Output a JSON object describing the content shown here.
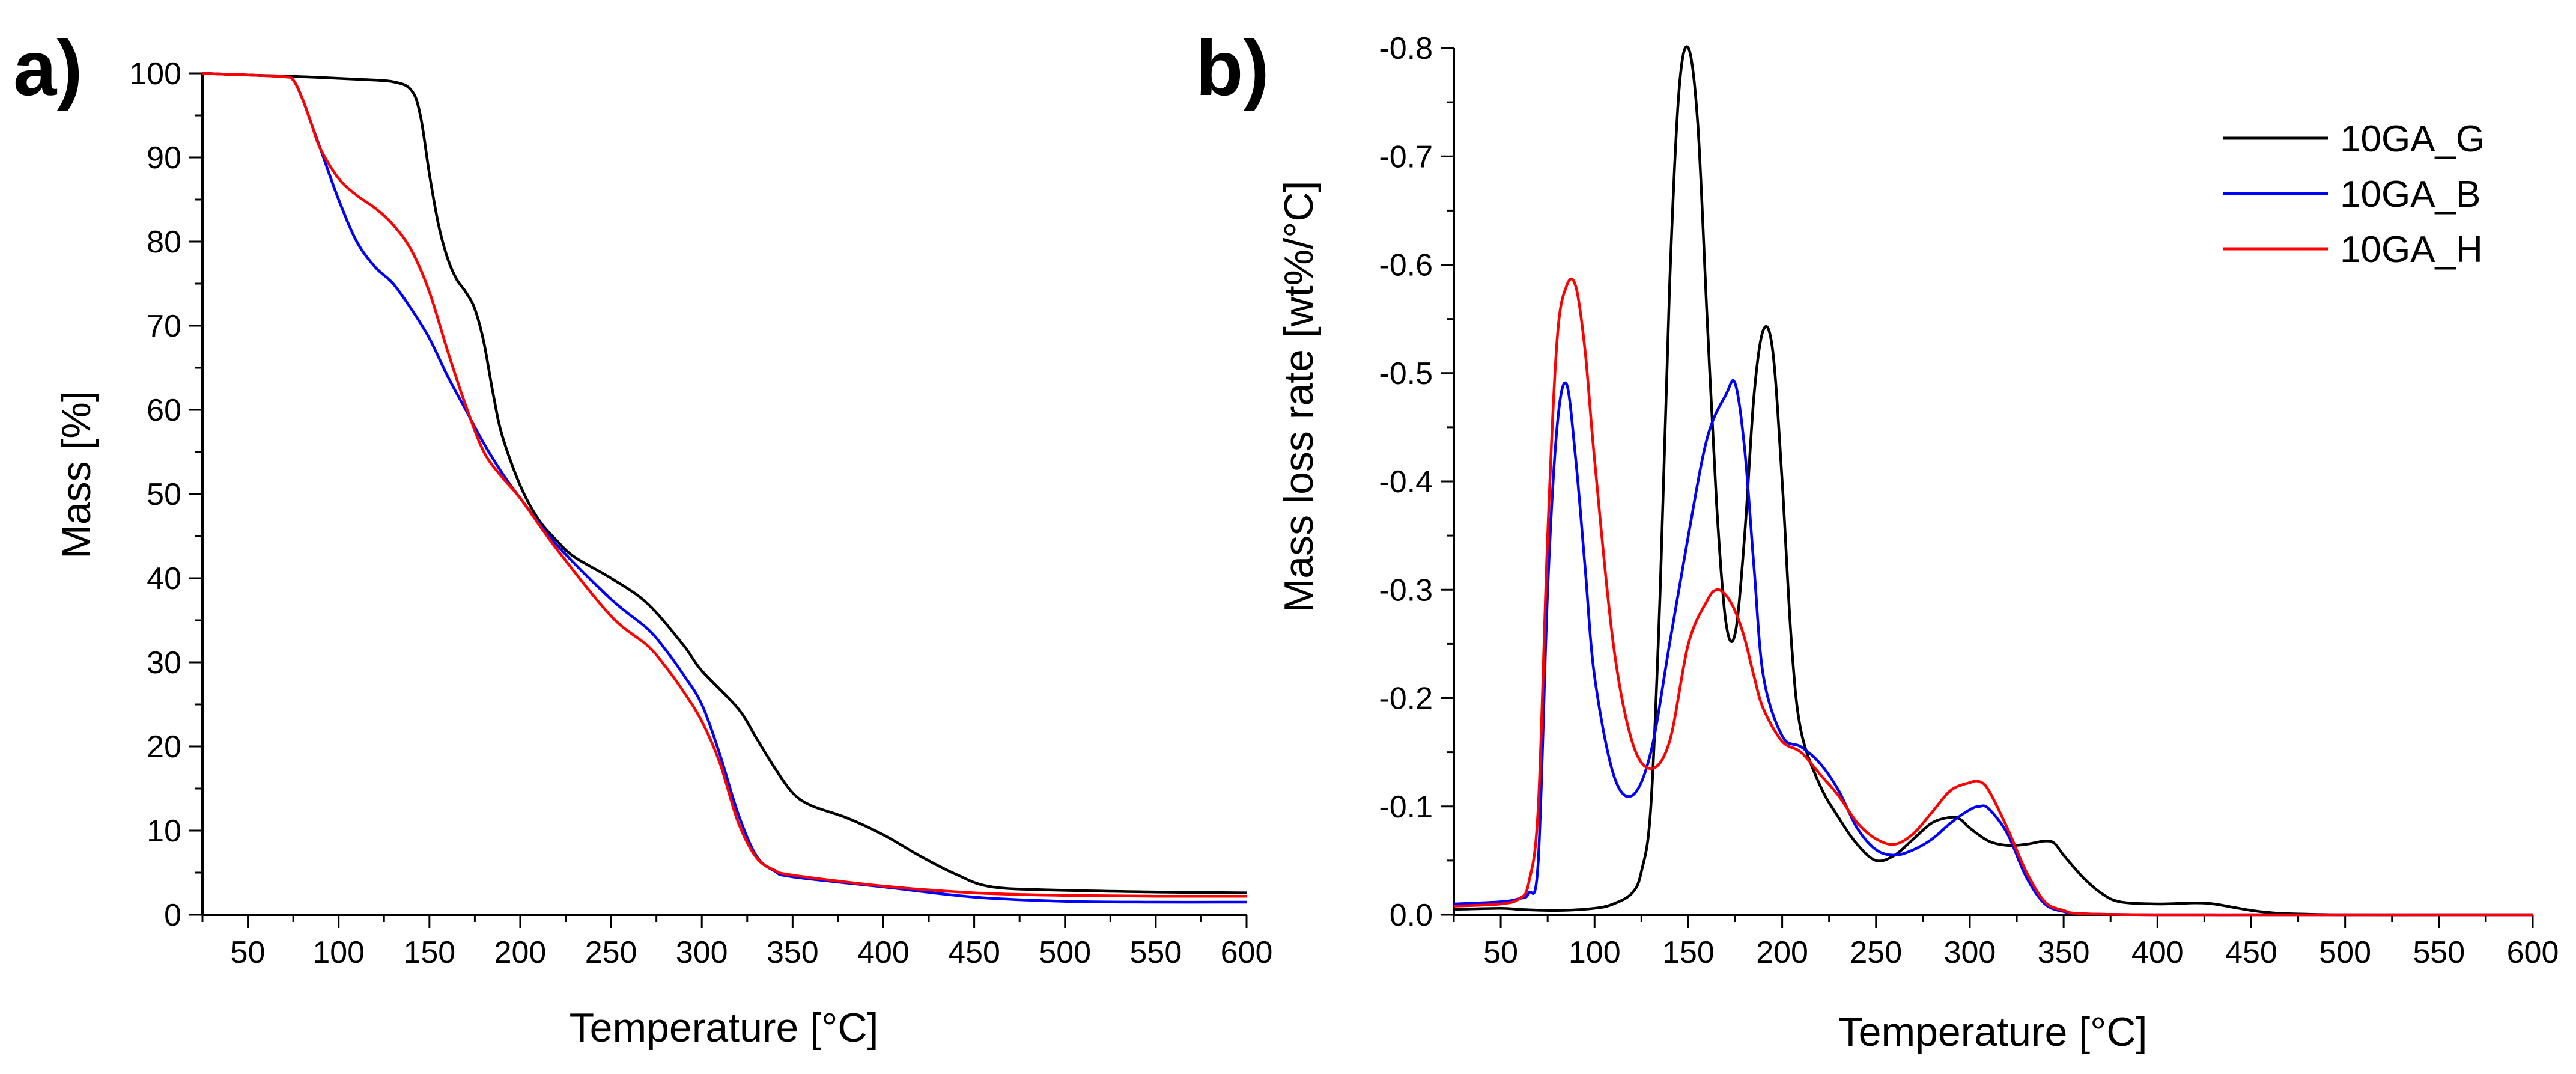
{
  "chart_data": [
    {
      "panel": "a)",
      "type": "line",
      "xlabel": "Temperature [°C]",
      "ylabel": "Mass [%]",
      "xlim": [
        25,
        600
      ],
      "ylim": [
        0,
        100
      ],
      "xticks": [
        50,
        100,
        150,
        200,
        250,
        300,
        350,
        400,
        450,
        500,
        550,
        600
      ],
      "yticks": [
        0,
        10,
        20,
        30,
        40,
        50,
        60,
        70,
        80,
        90,
        100
      ],
      "ytick_labels": [
        "0",
        "10",
        "20",
        "30",
        "40",
        "50",
        "60",
        "70",
        "80",
        "90",
        "100"
      ],
      "series": [
        {
          "name": "10GA_G",
          "color": "#000000",
          "x": [
            25,
            50,
            80,
            110,
            130,
            140,
            145,
            150,
            155,
            160,
            165,
            170,
            175,
            180,
            185,
            190,
            200,
            210,
            220,
            230,
            250,
            270,
            290,
            300,
            320,
            330,
            340,
            350,
            360,
            380,
            400,
            420,
            440,
            460,
            500,
            550,
            600
          ],
          "y": [
            100,
            99.8,
            99.6,
            99.3,
            99,
            98,
            95,
            88,
            82,
            78,
            75.5,
            74,
            72,
            68,
            62,
            57,
            51,
            47,
            44.5,
            42.5,
            40,
            37,
            32,
            29,
            24.5,
            21,
            17.5,
            14.5,
            13,
            11.5,
            9.5,
            7,
            4.8,
            3.3,
            2.9,
            2.7,
            2.6
          ]
        },
        {
          "name": "10GA_B",
          "color": "#0000ff",
          "x": [
            25,
            50,
            70,
            75,
            80,
            85,
            90,
            100,
            110,
            120,
            130,
            140,
            150,
            160,
            170,
            180,
            190,
            200,
            220,
            250,
            270,
            280,
            290,
            300,
            310,
            320,
            330,
            340,
            350,
            400,
            450,
            500,
            550,
            600
          ],
          "y": [
            100,
            99.8,
            99.6,
            99.2,
            97,
            94,
            91,
            85,
            80,
            77,
            75,
            72,
            68.5,
            64,
            60,
            56,
            52.5,
            49.5,
            44,
            37.5,
            34,
            31.5,
            28.5,
            25,
            19,
            12,
            7,
            5.2,
            4.5,
            3.3,
            2.1,
            1.6,
            1.5,
            1.5
          ]
        },
        {
          "name": "10GA_H",
          "color": "#ff0000",
          "x": [
            25,
            50,
            70,
            75,
            80,
            85,
            90,
            100,
            110,
            120,
            130,
            140,
            150,
            160,
            170,
            180,
            190,
            200,
            220,
            250,
            270,
            280,
            290,
            300,
            310,
            320,
            330,
            340,
            350,
            400,
            450,
            500,
            550,
            600
          ],
          "y": [
            100,
            99.8,
            99.6,
            99.2,
            97,
            94,
            91,
            87.5,
            85.5,
            84,
            82,
            79,
            74,
            67,
            60.5,
            55,
            52,
            49.5,
            43.5,
            35.5,
            32,
            29.5,
            26.5,
            23,
            18,
            11,
            6.8,
            5.3,
            4.7,
            3.4,
            2.6,
            2.3,
            2.2,
            2.2
          ]
        }
      ]
    },
    {
      "panel": "b)",
      "type": "line",
      "xlabel": "Temperature [°C]",
      "ylabel": "Mass loss rate [wt%/°C]",
      "xlim": [
        25,
        600
      ],
      "ylim": [
        0,
        0.8
      ],
      "y_inverted_sign": true,
      "xticks": [
        50,
        100,
        150,
        200,
        250,
        300,
        350,
        400,
        450,
        500,
        550,
        600
      ],
      "yticks": [
        0,
        0.1,
        0.2,
        0.3,
        0.4,
        0.5,
        0.6,
        0.7,
        0.8
      ],
      "ytick_labels": [
        "0.0",
        "-0.1",
        "-0.2",
        "-0.3",
        "-0.4",
        "-0.5",
        "-0.6",
        "-0.7",
        "-0.8"
      ],
      "legend": {
        "position": "top-right",
        "entries": [
          "10GA_G",
          "10GA_B",
          "10GA_H"
        ]
      },
      "series": [
        {
          "name": "10GA_G",
          "color": "#000000",
          "x": [
            25,
            50,
            60,
            80,
            100,
            110,
            120,
            125,
            130,
            135,
            140,
            145,
            150,
            155,
            160,
            165,
            170,
            175,
            180,
            185,
            190,
            195,
            200,
            205,
            210,
            220,
            230,
            240,
            250,
            260,
            270,
            280,
            290,
            295,
            300,
            310,
            320,
            330,
            340,
            345,
            350,
            360,
            370,
            380,
            400,
            420,
            430,
            440,
            450,
            460,
            470,
            500,
            550,
            600
          ],
          "y": [
            0.005,
            0.006,
            0.005,
            0.004,
            0.006,
            0.01,
            0.02,
            0.04,
            0.1,
            0.3,
            0.58,
            0.76,
            0.8,
            0.73,
            0.55,
            0.38,
            0.27,
            0.26,
            0.35,
            0.48,
            0.54,
            0.52,
            0.4,
            0.25,
            0.17,
            0.12,
            0.09,
            0.065,
            0.05,
            0.055,
            0.07,
            0.085,
            0.09,
            0.088,
            0.08,
            0.068,
            0.064,
            0.065,
            0.068,
            0.066,
            0.055,
            0.035,
            0.02,
            0.012,
            0.01,
            0.011,
            0.01,
            0.007,
            0.004,
            0.002,
            0.001,
            0,
            0,
            0
          ]
        },
        {
          "name": "10GA_B",
          "color": "#0000ff",
          "x": [
            25,
            50,
            60,
            65,
            70,
            75,
            80,
            85,
            90,
            95,
            100,
            110,
            120,
            130,
            140,
            150,
            160,
            170,
            175,
            180,
            185,
            190,
            200,
            210,
            220,
            230,
            240,
            250,
            260,
            270,
            280,
            290,
            300,
            305,
            310,
            320,
            330,
            340,
            350,
            360,
            400,
            450,
            500,
            550,
            600
          ],
          "y": [
            0.01,
            0.012,
            0.015,
            0.02,
            0.05,
            0.3,
            0.45,
            0.49,
            0.42,
            0.32,
            0.22,
            0.13,
            0.11,
            0.15,
            0.25,
            0.35,
            0.44,
            0.48,
            0.49,
            0.43,
            0.32,
            0.22,
            0.165,
            0.155,
            0.14,
            0.115,
            0.08,
            0.06,
            0.055,
            0.06,
            0.07,
            0.085,
            0.097,
            0.1,
            0.098,
            0.075,
            0.035,
            0.01,
            0.003,
            0.001,
            0,
            0,
            0,
            0,
            0
          ]
        },
        {
          "name": "10GA_H",
          "color": "#ff0000",
          "x": [
            25,
            50,
            60,
            65,
            70,
            75,
            80,
            85,
            90,
            95,
            100,
            110,
            120,
            130,
            140,
            150,
            160,
            165,
            170,
            175,
            180,
            185,
            190,
            200,
            210,
            220,
            230,
            240,
            250,
            260,
            270,
            280,
            290,
            300,
            305,
            310,
            320,
            330,
            340,
            350,
            360,
            400,
            450,
            500,
            550,
            600
          ],
          "y": [
            0.008,
            0.01,
            0.015,
            0.03,
            0.1,
            0.35,
            0.53,
            0.58,
            0.58,
            0.52,
            0.42,
            0.25,
            0.16,
            0.135,
            0.16,
            0.25,
            0.29,
            0.3,
            0.295,
            0.28,
            0.255,
            0.22,
            0.19,
            0.16,
            0.15,
            0.13,
            0.11,
            0.085,
            0.07,
            0.065,
            0.075,
            0.095,
            0.115,
            0.122,
            0.123,
            0.115,
            0.08,
            0.04,
            0.012,
            0.004,
            0.001,
            0,
            0,
            0,
            0,
            0
          ]
        }
      ]
    }
  ]
}
